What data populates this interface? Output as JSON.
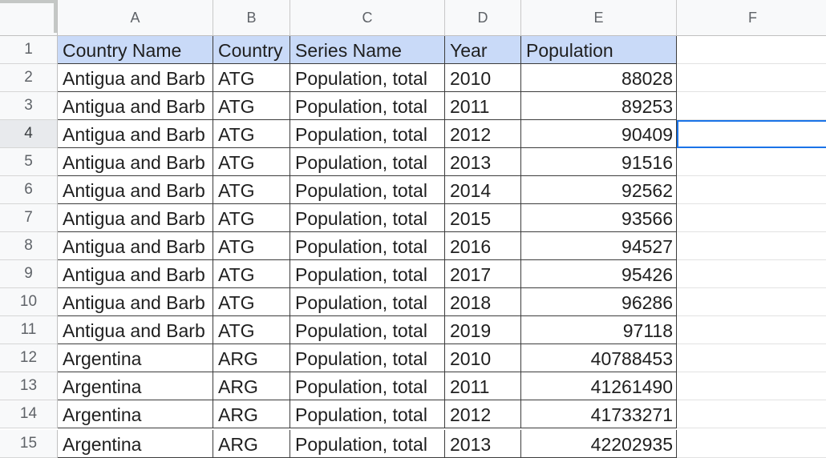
{
  "columns": [
    "A",
    "B",
    "C",
    "D",
    "E",
    "F"
  ],
  "header_row": {
    "row_number": "1",
    "cells": [
      "Country Name",
      "Country",
      "Series Name",
      "Year",
      "Population",
      ""
    ]
  },
  "rows": [
    {
      "row_number": "2",
      "cells": [
        "Antigua and Barb",
        "ATG",
        "Population, total",
        "2010",
        "88028",
        ""
      ]
    },
    {
      "row_number": "3",
      "cells": [
        "Antigua and Barb",
        "ATG",
        "Population, total",
        "2011",
        "89253",
        ""
      ]
    },
    {
      "row_number": "4",
      "cells": [
        "Antigua and Barb",
        "ATG",
        "Population, total",
        "2012",
        "90409",
        ""
      ]
    },
    {
      "row_number": "5",
      "cells": [
        "Antigua and Barb",
        "ATG",
        "Population, total",
        "2013",
        "91516",
        ""
      ]
    },
    {
      "row_number": "6",
      "cells": [
        "Antigua and Barb",
        "ATG",
        "Population, total",
        "2014",
        "92562",
        ""
      ]
    },
    {
      "row_number": "7",
      "cells": [
        "Antigua and Barb",
        "ATG",
        "Population, total",
        "2015",
        "93566",
        ""
      ]
    },
    {
      "row_number": "8",
      "cells": [
        "Antigua and Barb",
        "ATG",
        "Population, total",
        "2016",
        "94527",
        ""
      ]
    },
    {
      "row_number": "9",
      "cells": [
        "Antigua and Barb",
        "ATG",
        "Population, total",
        "2017",
        "95426",
        ""
      ]
    },
    {
      "row_number": "10",
      "cells": [
        "Antigua and Barb",
        "ATG",
        "Population, total",
        "2018",
        "96286",
        ""
      ]
    },
    {
      "row_number": "11",
      "cells": [
        "Antigua and Barb",
        "ATG",
        "Population, total",
        "2019",
        "97118",
        ""
      ]
    },
    {
      "row_number": "12",
      "cells": [
        "Argentina",
        "ARG",
        "Population, total",
        "2010",
        "40788453",
        ""
      ]
    },
    {
      "row_number": "13",
      "cells": [
        "Argentina",
        "ARG",
        "Population, total",
        "2011",
        "41261490",
        ""
      ]
    },
    {
      "row_number": "14",
      "cells": [
        "Argentina",
        "ARG",
        "Population, total",
        "2012",
        "41733271",
        ""
      ]
    },
    {
      "row_number": "15",
      "cells": [
        "Argentina",
        "ARG",
        "Population, total",
        "2013",
        "42202935",
        ""
      ]
    }
  ],
  "selection": {
    "active_cell": "F4",
    "selected_row": "4"
  },
  "colors": {
    "header_fill": "#c9daf8",
    "selection": "#1a73e8"
  }
}
